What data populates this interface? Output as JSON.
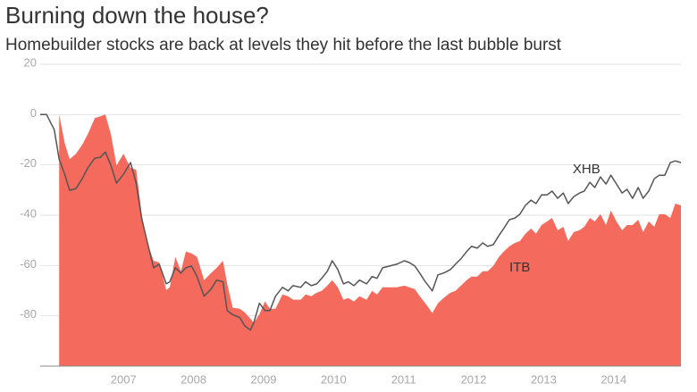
{
  "chart_data": {
    "type": "area-line",
    "title": "Burning down the house?",
    "subtitle": "Homebuilder stocks are back at levels they hit before the last bubble burst",
    "x": [
      2005.81,
      2005.9,
      2006.01,
      2006.08,
      2006.16,
      2006.23,
      2006.32,
      2006.41,
      2006.49,
      2006.59,
      2006.67,
      2006.74,
      2006.82,
      2006.9,
      2007.0,
      2007.1,
      2007.18,
      2007.26,
      2007.33,
      2007.43,
      2007.51,
      2007.61,
      2007.66,
      2007.74,
      2007.82,
      2007.89,
      2007.97,
      2008.05,
      2008.15,
      2008.25,
      2008.33,
      2008.42,
      2008.48,
      2008.56,
      2008.66,
      2008.73,
      2008.81,
      2008.86,
      2008.94,
      2009.02,
      2009.09,
      2009.17,
      2009.27,
      2009.35,
      2009.42,
      2009.53,
      2009.6,
      2009.68,
      2009.76,
      2009.83,
      2009.91,
      2009.98,
      2010.06,
      2010.14,
      2010.21,
      2010.29,
      2010.37,
      2010.47,
      2010.55,
      2010.62,
      2010.7,
      2010.8,
      2010.9,
      2011.01,
      2011.08,
      2011.16,
      2011.23,
      2011.31,
      2011.41,
      2011.49,
      2011.57,
      2011.67,
      2011.74,
      2011.82,
      2011.9,
      2011.97,
      2012.05,
      2012.13,
      2012.2,
      2012.28,
      2012.36,
      2012.43,
      2012.51,
      2012.59,
      2012.66,
      2012.74,
      2012.82,
      2012.89,
      2012.97,
      2013.05,
      2013.12,
      2013.2,
      2013.28,
      2013.35,
      2013.43,
      2013.51,
      2013.58,
      2013.66,
      2013.73,
      2013.81,
      2013.89,
      2013.96,
      2014.04,
      2014.12,
      2014.19,
      2014.27,
      2014.35,
      2014.42,
      2014.5,
      2014.58,
      2014.65,
      2014.73,
      2014.81,
      2014.88,
      2014.96
    ],
    "series": [
      {
        "name": "ITB",
        "color": "#f46a5c",
        "kind": "area",
        "values": [
          null,
          null,
          null,
          0,
          -11.3,
          -17.7,
          -15.6,
          -12.0,
          -7.8,
          -1.4,
          -0.7,
          0,
          -7.8,
          -20.2,
          -15.6,
          -21.2,
          -21.9,
          -39.6,
          -50.3,
          -58.1,
          -58.8,
          -69.7,
          -68.7,
          -56.6,
          -62.3,
          -54.5,
          -55.2,
          -56.6,
          -65.8,
          -63.0,
          -60.9,
          -58.1,
          -67.3,
          -76.8,
          -77.2,
          -78.6,
          -81.1,
          -82.8,
          -79.3,
          -74.3,
          -77.2,
          -77.2,
          -71.5,
          -72.2,
          -73.6,
          -73.6,
          -71.5,
          -72.2,
          -70.8,
          -70.1,
          -68.0,
          -65.8,
          -68.7,
          -73.6,
          -72.9,
          -74.3,
          -72.2,
          -73.6,
          -70.1,
          -71.5,
          -68.7,
          -68.7,
          -68.7,
          -68.0,
          -68.7,
          -69.4,
          -72.2,
          -75.0,
          -78.9,
          -75.0,
          -72.9,
          -70.8,
          -70.1,
          -68.0,
          -65.8,
          -64.4,
          -64.4,
          -62.3,
          -62.3,
          -60.2,
          -56.6,
          -54.5,
          -52.4,
          -51.0,
          -50.3,
          -47.4,
          -45.3,
          -47.4,
          -43.9,
          -42.5,
          -41.1,
          -46.0,
          -44.6,
          -50.3,
          -46.7,
          -46.0,
          -44.6,
          -41.1,
          -42.5,
          -39.6,
          -43.9,
          -38.2,
          -42.5,
          -46.0,
          -43.9,
          -43.9,
          -41.8,
          -46.7,
          -42.5,
          -44.6,
          -39.6,
          -39.6,
          -41.1,
          -35.4,
          -36.1
        ]
      },
      {
        "name": "XHB",
        "color": "#555555",
        "kind": "line",
        "values": [
          0,
          0,
          -6.0,
          -17.7,
          -23.7,
          -30.1,
          -29.4,
          -25.5,
          -21.2,
          -17.3,
          -17.0,
          -14.9,
          -20.2,
          -27.3,
          -23.7,
          -19.1,
          -27.3,
          -41.4,
          -49.6,
          -60.9,
          -59.5,
          -67.3,
          -66.5,
          -60.9,
          -63.0,
          -60.9,
          -60.2,
          -64.4,
          -72.2,
          -69.4,
          -65.8,
          -66.5,
          -77.9,
          -79.6,
          -80.7,
          -83.9,
          -85.7,
          -82.8,
          -75.0,
          -77.9,
          -77.9,
          -72.2,
          -68.7,
          -70.1,
          -68.0,
          -68.7,
          -66.5,
          -68.0,
          -67.3,
          -65.1,
          -62.3,
          -58.1,
          -61.6,
          -67.3,
          -66.5,
          -68.0,
          -65.8,
          -67.3,
          -64.4,
          -65.1,
          -60.9,
          -60.2,
          -59.5,
          -58.1,
          -58.8,
          -60.2,
          -63.0,
          -66.5,
          -70.1,
          -63.7,
          -63.0,
          -61.6,
          -59.5,
          -57.3,
          -54.5,
          -52.4,
          -53.1,
          -51.0,
          -52.4,
          -51.7,
          -48.1,
          -45.3,
          -41.8,
          -41.1,
          -39.6,
          -36.1,
          -34.0,
          -35.4,
          -31.9,
          -31.9,
          -30.4,
          -33.3,
          -31.2,
          -35.4,
          -32.6,
          -31.2,
          -30.4,
          -26.9,
          -29.0,
          -24.8,
          -27.6,
          -24.1,
          -27.6,
          -31.2,
          -29.7,
          -33.3,
          -29.0,
          -33.3,
          -30.4,
          -25.5,
          -24.1,
          -24.1,
          -19.1,
          -18.4,
          -19.1
        ]
      }
    ],
    "xlim": [
      2005.81,
      2014.96
    ],
    "xticks": [
      2007,
      2008,
      2009,
      2010,
      2011,
      2012,
      2013,
      2014
    ],
    "ylim": [
      -100,
      20
    ],
    "yticks": [
      -80,
      -60,
      -40,
      -20,
      0,
      20
    ],
    "grid": true
  }
}
